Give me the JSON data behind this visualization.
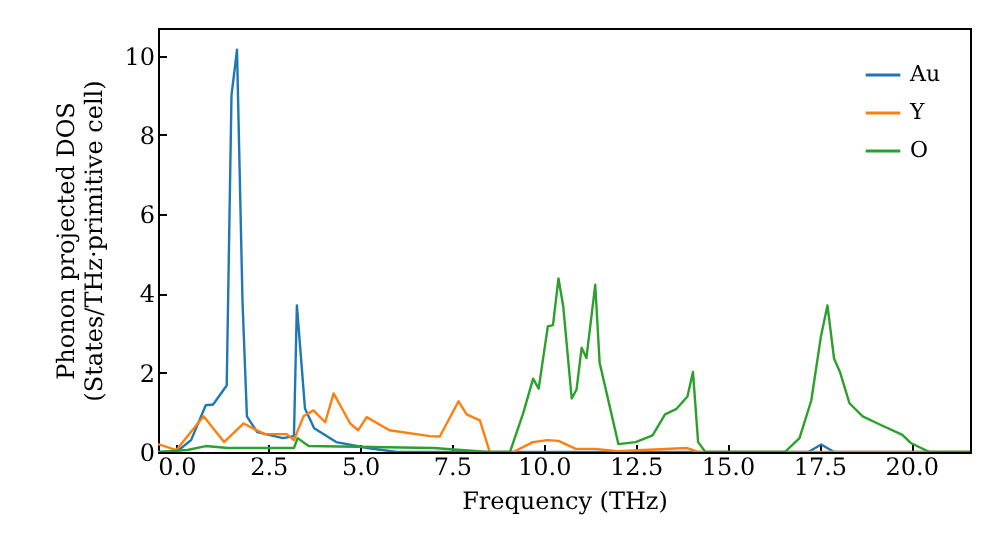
{
  "chart_data": {
    "type": "line",
    "xlabel": "Frequency (THz)",
    "ylabel": "Phonon projected DOS\n(States/THz·primitive cell)",
    "xlim": [
      -0.5,
      21.6
    ],
    "ylim": [
      0,
      10.7
    ],
    "xticks": [
      {
        "value": 0,
        "label": "0.0"
      },
      {
        "value": 2.5,
        "label": "2.5"
      },
      {
        "value": 5,
        "label": "5.0"
      },
      {
        "value": 7.5,
        "label": "7.5"
      },
      {
        "value": 10,
        "label": "10.0"
      },
      {
        "value": 12.5,
        "label": "12.5"
      },
      {
        "value": 15,
        "label": "15.0"
      },
      {
        "value": 17.5,
        "label": "17.5"
      },
      {
        "value": 20,
        "label": "20.0"
      }
    ],
    "yticks": [
      0,
      2,
      4,
      6,
      8,
      10
    ],
    "grid": false,
    "legend": "top right",
    "series": [
      {
        "name": "Au",
        "color": "#1f77b4",
        "x": [
          -0.5,
          0,
          0.4,
          0.8,
          1.0,
          1.37,
          1.5,
          1.65,
          1.8,
          1.92,
          2.2,
          2.9,
          3.2,
          3.28,
          3.5,
          3.75,
          4.35,
          5.2,
          6,
          17.2,
          17.55,
          17.9,
          21.6
        ],
        "values": [
          0,
          0,
          0.3,
          1.18,
          1.2,
          1.68,
          9.0,
          10.15,
          3.8,
          0.9,
          0.5,
          0.35,
          0.4,
          3.7,
          1.1,
          0.6,
          0.25,
          0.1,
          0,
          0,
          0.19,
          0,
          0
        ]
      },
      {
        "name": "Y",
        "color": "#ff7f0e",
        "x": [
          -0.5,
          0,
          0.74,
          1.3,
          1.83,
          2.4,
          3.0,
          3.2,
          3.46,
          3.73,
          4.05,
          4.28,
          4.73,
          4.95,
          5.18,
          5.8,
          6.9,
          7.17,
          7.68,
          7.9,
          8.26,
          8.53,
          9.17,
          9.7,
          10.1,
          10.4,
          10.87,
          11.4,
          12,
          13.9,
          14.2,
          21.6
        ],
        "values": [
          0.2,
          0.05,
          0.9,
          0.25,
          0.72,
          0.45,
          0.45,
          0.3,
          0.9,
          1.05,
          0.75,
          1.48,
          0.72,
          0.55,
          0.88,
          0.55,
          0.4,
          0.39,
          1.28,
          0.95,
          0.8,
          0,
          0,
          0.25,
          0.3,
          0.28,
          0.08,
          0.08,
          0.02,
          0.1,
          0,
          0
        ]
      },
      {
        "name": "O",
        "color": "#2ca02c",
        "x": [
          -0.5,
          0.3,
          0.8,
          1.4,
          3.2,
          3.3,
          3.6,
          7,
          8.5,
          9.08,
          9.44,
          9.71,
          9.86,
          10.11,
          10.25,
          10.4,
          10.53,
          10.76,
          10.89,
          11.03,
          11.16,
          11.4,
          11.52,
          11.67,
          12.03,
          12.5,
          12.96,
          13.3,
          13.6,
          13.91,
          14.06,
          14.2,
          14.4,
          16.56,
          16.96,
          17.28,
          17.54,
          17.72,
          17.9,
          18.06,
          18.32,
          18.68,
          19.13,
          19.76,
          20.0,
          20.5,
          21.6
        ],
        "values": [
          0,
          0.05,
          0.15,
          0.1,
          0.1,
          0.35,
          0.15,
          0.1,
          0,
          0,
          0.98,
          1.85,
          1.6,
          3.17,
          3.2,
          4.38,
          3.67,
          1.35,
          1.57,
          2.63,
          2.37,
          4.22,
          2.25,
          1.65,
          0.2,
          0.25,
          0.42,
          0.95,
          1.08,
          1.4,
          2.02,
          0.25,
          0,
          0,
          0.35,
          1.3,
          2.9,
          3.7,
          2.36,
          2.02,
          1.23,
          0.9,
          0.7,
          0.43,
          0.22,
          0,
          0
        ]
      }
    ]
  }
}
